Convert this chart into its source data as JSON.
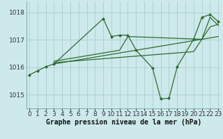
{
  "xlabel": "Graphe pression niveau de la mer (hPa)",
  "xlim": [
    -0.3,
    23.3
  ],
  "ylim": [
    1014.5,
    1018.4
  ],
  "yticks": [
    1015,
    1016,
    1017,
    1018
  ],
  "xticks": [
    0,
    1,
    2,
    3,
    4,
    5,
    6,
    7,
    8,
    9,
    10,
    11,
    12,
    13,
    14,
    15,
    16,
    17,
    18,
    19,
    20,
    21,
    22,
    23
  ],
  "bg_color": "#cde9ec",
  "grid_color": "#aacdd2",
  "line_color": "#2d6b2d",
  "curves": [
    {
      "x": [
        0,
        1,
        2,
        3,
        9,
        10,
        11,
        12,
        13,
        15,
        16,
        17,
        18,
        20,
        21,
        22,
        23
      ],
      "y": [
        1015.72,
        1015.87,
        1016.02,
        1016.12,
        1017.77,
        1017.12,
        1017.17,
        1017.17,
        1016.62,
        1015.97,
        1014.85,
        1014.87,
        1016.02,
        1017.02,
        1017.82,
        1017.92,
        1017.67
      ],
      "has_markers": true,
      "lw": 0.9
    },
    {
      "x": [
        3,
        23
      ],
      "y": [
        1016.12,
        1017.12
      ],
      "has_markers": false,
      "lw": 0.9
    },
    {
      "x": [
        3,
        20,
        22,
        23
      ],
      "y": [
        1016.17,
        1016.57,
        1017.47,
        1017.57
      ],
      "has_markers": false,
      "lw": 0.9
    },
    {
      "x": [
        3,
        11,
        12,
        21,
        22,
        23
      ],
      "y": [
        1016.22,
        1016.62,
        1017.12,
        1017.02,
        1017.82,
        1017.52
      ],
      "has_markers": false,
      "lw": 0.9
    }
  ],
  "font_size_xlabel": 7,
  "tick_fontsize": 6.5
}
